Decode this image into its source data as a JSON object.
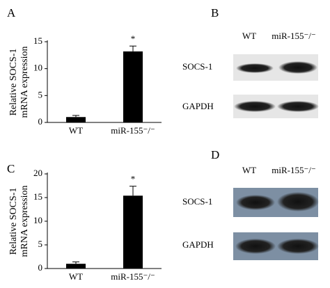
{
  "chart_data": [
    {
      "type": "bar",
      "panel": "A",
      "ylabel": [
        "Relative SOCS-1",
        "mRNA expression"
      ],
      "categories": [
        "WT",
        "miR-155⁻/⁻"
      ],
      "values": [
        1,
        13.2
      ],
      "errors": [
        0.3,
        1.0
      ],
      "color": "#000000",
      "annotations": [
        {
          "category": "miR-155⁻/⁻",
          "text": "*"
        }
      ],
      "ylim": [
        0,
        15
      ],
      "yticks": [
        0,
        5,
        10,
        15
      ]
    },
    {
      "type": "bar",
      "panel": "C",
      "ylabel": [
        "Relative SOCS-1",
        "mRNA expression"
      ],
      "categories": [
        "WT",
        "miR-155⁻/⁻"
      ],
      "values": [
        1,
        15.4
      ],
      "errors": [
        0.4,
        2.0
      ],
      "color": "#000000",
      "annotations": [
        {
          "category": "miR-155⁻/⁻",
          "text": "*"
        }
      ],
      "ylim": [
        0,
        20
      ],
      "yticks": [
        0,
        5,
        10,
        15,
        20
      ]
    }
  ],
  "blots": [
    {
      "panel": "B",
      "lanes": [
        "WT",
        "miR-155⁻/⁻"
      ],
      "rows": [
        "SOCS-1",
        "GAPDH"
      ]
    },
    {
      "panel": "D",
      "lanes": [
        "WT",
        "miR-155⁻/⁻"
      ],
      "rows": [
        "SOCS-1",
        "GAPDH"
      ]
    }
  ]
}
